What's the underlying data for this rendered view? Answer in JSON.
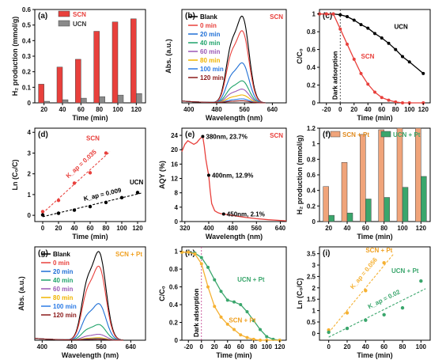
{
  "chart_data": [
    {
      "id": "a",
      "panel_label": "(a)",
      "type": "bar",
      "xlabel": "Time (min)",
      "ylabel": "H₂ production (mmol/g)",
      "ylim": [
        0,
        0.6
      ],
      "yticks": [
        0,
        0.1,
        0.2,
        0.3,
        0.4,
        0.5,
        0.6
      ],
      "categories": [
        "20",
        "40",
        "60",
        "80",
        "100",
        "120"
      ],
      "legend": "top-left",
      "series": [
        {
          "name": "SCN",
          "color": "#e8403c",
          "values": [
            0.12,
            0.23,
            0.28,
            0.46,
            0.52,
            0.54
          ]
        },
        {
          "name": "UCN",
          "color": "#8a8a8a",
          "values": [
            0.01,
            0.02,
            0.03,
            0.04,
            0.05,
            0.06
          ]
        }
      ]
    },
    {
      "id": "b",
      "panel_label": "(b)",
      "type": "line",
      "xlabel": "Wavelength (nm)",
      "ylabel": "Abs. (a.u.)",
      "xlim": [
        380,
        680
      ],
      "xticks": [
        400,
        480,
        560,
        640
      ],
      "ylim": [
        0,
        2.0
      ],
      "yticks": [],
      "corner_label": "SCN",
      "legend": "top-left",
      "series": [
        {
          "name": "Blank",
          "color": "#000000",
          "peak": 1.78
        },
        {
          "name": "0 min",
          "color": "#e8403c",
          "peak": 1.48
        },
        {
          "name": "20 min",
          "color": "#1f6fd6",
          "peak": 0.82
        },
        {
          "name": "40 min",
          "color": "#1fa36a",
          "peak": 0.45
        },
        {
          "name": "60 min",
          "color": "#9b59b6",
          "peak": 0.28
        },
        {
          "name": "80 min",
          "color": "#f0b400",
          "peak": 0.16
        },
        {
          "name": "100 min",
          "color": "#2c7be5",
          "peak": 0.08
        },
        {
          "name": "120 min",
          "color": "#8b1a1a",
          "peak": 0.04
        }
      ]
    },
    {
      "id": "c",
      "panel_label": "(c)",
      "type": "line",
      "xlabel": "Time (min)",
      "ylabel": "C/C₀",
      "xlim": [
        -30,
        130
      ],
      "xticks": [
        -20,
        0,
        20,
        40,
        60,
        80,
        100,
        120
      ],
      "ylim": [
        0,
        1.05
      ],
      "yticks": [
        0,
        0.2,
        0.4,
        0.6,
        0.8,
        1.0
      ],
      "vline_x": 0,
      "vline_label": "Dark adsorption",
      "series": [
        {
          "name": "UCN",
          "color": "#000000",
          "x": [
            -30,
            -20,
            -10,
            0,
            10,
            20,
            30,
            40,
            50,
            60,
            70,
            80,
            90,
            100,
            120
          ],
          "y": [
            1.0,
            1.0,
            1.0,
            0.99,
            0.97,
            0.93,
            0.88,
            0.84,
            0.78,
            0.73,
            0.67,
            0.6,
            0.52,
            0.46,
            0.33
          ]
        },
        {
          "name": "SCN",
          "color": "#e8403c",
          "x": [
            -30,
            -20,
            -10,
            0,
            10,
            20,
            30,
            40,
            50,
            60,
            70,
            80,
            90,
            100,
            120
          ],
          "y": [
            1.0,
            1.0,
            1.0,
            0.83,
            0.66,
            0.49,
            0.33,
            0.21,
            0.12,
            0.06,
            0.03,
            0.01,
            0.0,
            0.0,
            0.0
          ]
        }
      ]
    },
    {
      "id": "d",
      "panel_label": "(d)",
      "type": "scatter",
      "xlabel": "Time (min)",
      "ylabel": "Ln (C₀/C)",
      "xlim": [
        -10,
        130
      ],
      "xticks": [
        0,
        20,
        40,
        60,
        80,
        100,
        120
      ],
      "ylim": [
        -0.3,
        4.2
      ],
      "yticks": [
        0,
        1,
        2,
        3,
        4
      ],
      "series": [
        {
          "name": "SCN",
          "color": "#e8403c",
          "x": [
            0,
            20,
            40,
            60,
            80
          ],
          "y": [
            0.18,
            0.72,
            1.55,
            2.05,
            3.0
          ],
          "fit_label": "K_ap = 0.035"
        },
        {
          "name": "UCN",
          "color": "#000000",
          "x": [
            0,
            20,
            40,
            60,
            80,
            100,
            120
          ],
          "y": [
            0.02,
            0.1,
            0.25,
            0.42,
            0.62,
            0.85,
            1.1
          ],
          "fit_label": "K_ap = 0.009"
        }
      ]
    },
    {
      "id": "e",
      "panel_label": "(e)",
      "type": "line",
      "xlabel": "Wavelength (nm)",
      "ylabel": "AQY (%)",
      "xlim": [
        310,
        660
      ],
      "xticks": [
        320,
        400,
        480,
        560,
        640
      ],
      "ylim": [
        0,
        26
      ],
      "yticks": [
        0,
        4,
        8,
        12,
        16,
        20,
        24
      ],
      "corner_label": "SCN",
      "series": [
        {
          "name": "AQY",
          "color": "#e8403c",
          "x": [
            310,
            320,
            330,
            340,
            350,
            360,
            370,
            380,
            385,
            390,
            395,
            400,
            405,
            410,
            420,
            430,
            440,
            450,
            480,
            520,
            560,
            600,
            640,
            660
          ],
          "y": [
            19.5,
            21.5,
            22.5,
            22.0,
            21.5,
            22.0,
            23.0,
            23.7,
            21.0,
            17.5,
            15.0,
            12.9,
            8.5,
            5.0,
            3.0,
            2.5,
            2.2,
            2.1,
            1.7,
            1.2,
            0.8,
            0.5,
            0.3,
            0.2
          ]
        }
      ],
      "points": [
        {
          "x": 380,
          "y": 23.7,
          "label": "380nm, 23.7%"
        },
        {
          "x": 400,
          "y": 12.9,
          "label": "400nm, 12.9%"
        },
        {
          "x": 450,
          "y": 2.1,
          "label": "450nm, 2.1%"
        }
      ]
    },
    {
      "id": "f",
      "panel_label": "(f)",
      "type": "bar",
      "xlabel": "Time (min)",
      "ylabel": "H₂ production (mmol/g)",
      "ylim": [
        0,
        1.2
      ],
      "yticks": [
        0,
        0.2,
        0.4,
        0.6,
        0.8,
        1.0,
        1.2
      ],
      "categories": [
        "20",
        "40",
        "60",
        "80",
        "100",
        "120"
      ],
      "legend": "top",
      "series": [
        {
          "name": "SCN + Pt",
          "color": "#f0a47a",
          "values": [
            0.45,
            0.76,
            1.12,
            1.18,
            1.2,
            1.2
          ]
        },
        {
          "name": "UCN + Pt",
          "color": "#3aa66c",
          "values": [
            0.08,
            0.11,
            0.29,
            0.31,
            0.44,
            0.58
          ]
        }
      ]
    },
    {
      "id": "g",
      "panel_label": "(g)",
      "type": "line",
      "xlabel": "Wavelength (nm)",
      "ylabel": "Abs. (a.u.)",
      "xlim": [
        380,
        680
      ],
      "xticks": [
        400,
        480,
        560,
        640
      ],
      "ylim": [
        0,
        2.0
      ],
      "yticks": [],
      "corner_label": "SCN + Pt",
      "legend": "top-left",
      "series": [
        {
          "name": "Blank",
          "color": "#000000",
          "peak": 1.82
        },
        {
          "name": "0 min",
          "color": "#e8403c",
          "peak": 1.52
        },
        {
          "name": "20 min",
          "color": "#1f6fd6",
          "peak": 0.75
        },
        {
          "name": "40 min",
          "color": "#1fa36a",
          "peak": 0.32
        },
        {
          "name": "60 min",
          "color": "#9b59b6",
          "peak": 0.12
        },
        {
          "name": "80 min",
          "color": "#f0b400",
          "peak": 0.05
        },
        {
          "name": "100 min",
          "color": "#2c7be5",
          "peak": 0.03
        },
        {
          "name": "120 min",
          "color": "#8b1a1a",
          "peak": 0.02
        }
      ]
    },
    {
      "id": "h",
      "panel_label": "(h)",
      "type": "line",
      "xlabel": "Time (min)",
      "ylabel": "C/C₀",
      "xlim": [
        -30,
        130
      ],
      "xticks": [
        -20,
        0,
        20,
        40,
        60,
        80,
        100,
        120
      ],
      "ylim": [
        0,
        1.05
      ],
      "yticks": [
        0,
        0.2,
        0.4,
        0.6,
        0.8,
        1.0
      ],
      "vline_x": 0,
      "vline_label": "Dark adsorption",
      "series": [
        {
          "name": "UCN + Pt",
          "color": "#3aa66c",
          "x": [
            -30,
            -20,
            -10,
            0,
            10,
            20,
            30,
            40,
            50,
            60,
            70,
            80,
            90,
            100,
            110,
            120
          ],
          "y": [
            0.99,
            0.99,
            0.98,
            0.93,
            0.82,
            0.68,
            0.55,
            0.45,
            0.43,
            0.4,
            0.32,
            0.22,
            0.12,
            0.04,
            0.01,
            0.0
          ]
        },
        {
          "name": "SCN + Pt",
          "color": "#f5b133",
          "x": [
            -30,
            -20,
            -10,
            0,
            10,
            20,
            30,
            40,
            50,
            60,
            70,
            80,
            90,
            100,
            120
          ],
          "y": [
            0.99,
            0.99,
            0.97,
            0.86,
            0.6,
            0.38,
            0.26,
            0.18,
            0.12,
            0.06,
            0.03,
            0.01,
            0.0,
            0.0,
            0.0
          ]
        }
      ]
    },
    {
      "id": "i",
      "panel_label": "(i)",
      "type": "scatter",
      "xlabel": "Time (min)",
      "ylabel": "Ln (C₀/C)",
      "xlim": [
        -10,
        110
      ],
      "xticks": [
        0,
        20,
        40,
        60,
        80,
        100
      ],
      "ylim": [
        -0.3,
        3.8
      ],
      "yticks": [
        0,
        0.5,
        1.0,
        1.5,
        2.0,
        2.5,
        3.0,
        3.5
      ],
      "series": [
        {
          "name": "SCN + Pt",
          "color": "#f5b133",
          "x": [
            0,
            20,
            40,
            60
          ],
          "y": [
            0.15,
            0.9,
            1.88,
            3.1
          ],
          "fit_label": "K_ap = 0.056"
        },
        {
          "name": "UCN + Pt",
          "color": "#3aa66c",
          "x": [
            0,
            20,
            40,
            60,
            80,
            100
          ],
          "y": [
            0.05,
            0.22,
            0.58,
            0.82,
            1.12,
            2.3
          ],
          "fit_label": "K_ap = 0.02"
        }
      ]
    }
  ]
}
